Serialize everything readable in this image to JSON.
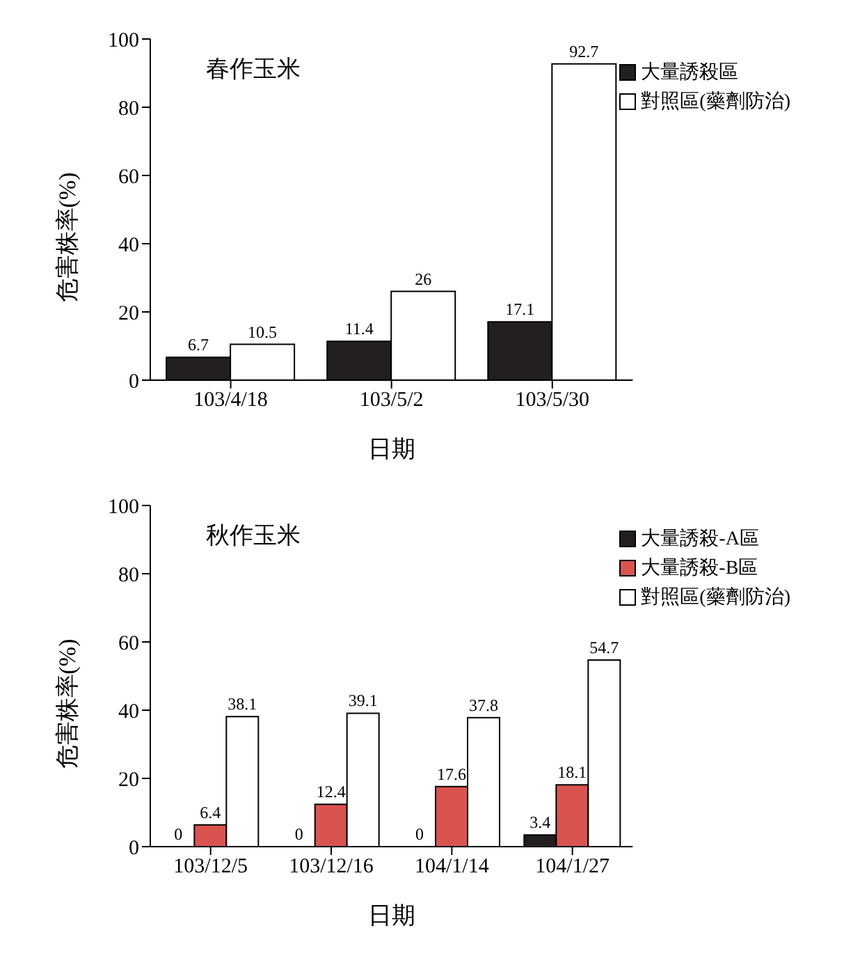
{
  "chart_data": [
    {
      "type": "bar",
      "title": "春作玉米",
      "xlabel": "日期",
      "ylabel": "危害株率(%)",
      "categories": [
        "103/4/18",
        "103/5/2",
        "103/5/30"
      ],
      "series": [
        {
          "name": "大量誘殺區",
          "color": "#231f20",
          "values": [
            6.7,
            11.4,
            17.1
          ]
        },
        {
          "name": "對照區(藥劑防治)",
          "color": "#ffffff",
          "values": [
            10.5,
            26,
            92.7
          ]
        }
      ],
      "ylim": [
        0,
        100
      ],
      "yticks": [
        0,
        20,
        40,
        60,
        80,
        100
      ],
      "grid": false,
      "legend": "top right",
      "data_labels": true
    },
    {
      "type": "bar",
      "title": "秋作玉米",
      "xlabel": "日期",
      "ylabel": "危害株率(%)",
      "categories": [
        "103/12/5",
        "103/12/16",
        "104/1/14",
        "104/1/27"
      ],
      "series": [
        {
          "name": "大量誘殺-A區",
          "color": "#231f20",
          "values": [
            0,
            0,
            0,
            3.4
          ]
        },
        {
          "name": "大量誘殺-B區",
          "color": "#d9534f",
          "values": [
            6.4,
            12.4,
            17.6,
            18.1
          ]
        },
        {
          "name": "對照區(藥劑防治)",
          "color": "#ffffff",
          "values": [
            38.1,
            39.1,
            37.8,
            54.7
          ]
        }
      ],
      "ylim": [
        0,
        100
      ],
      "yticks": [
        0,
        20,
        40,
        60,
        80,
        100
      ],
      "grid": false,
      "legend": "top right",
      "data_labels": true
    }
  ]
}
